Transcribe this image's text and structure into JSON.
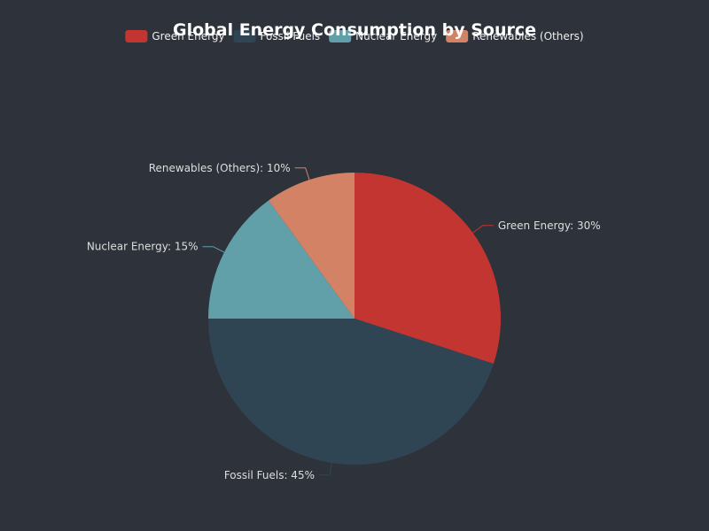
{
  "chart_data": {
    "type": "pie",
    "title": "Global Energy Consumption by Source",
    "legend_position": "top-center",
    "categories": [
      "Green Energy",
      "Fossil Fuels",
      "Nuclear Energy",
      "Renewables (Others)"
    ],
    "values": [
      30,
      45,
      15,
      10
    ],
    "labels": [
      "Green Energy: 30%",
      "Fossil Fuels: 45%",
      "Nuclear Energy: 15%",
      "Renewables (Others): 10%"
    ],
    "colors": [
      "#c23531",
      "#2f4554",
      "#61a0a8",
      "#d48265"
    ]
  }
}
